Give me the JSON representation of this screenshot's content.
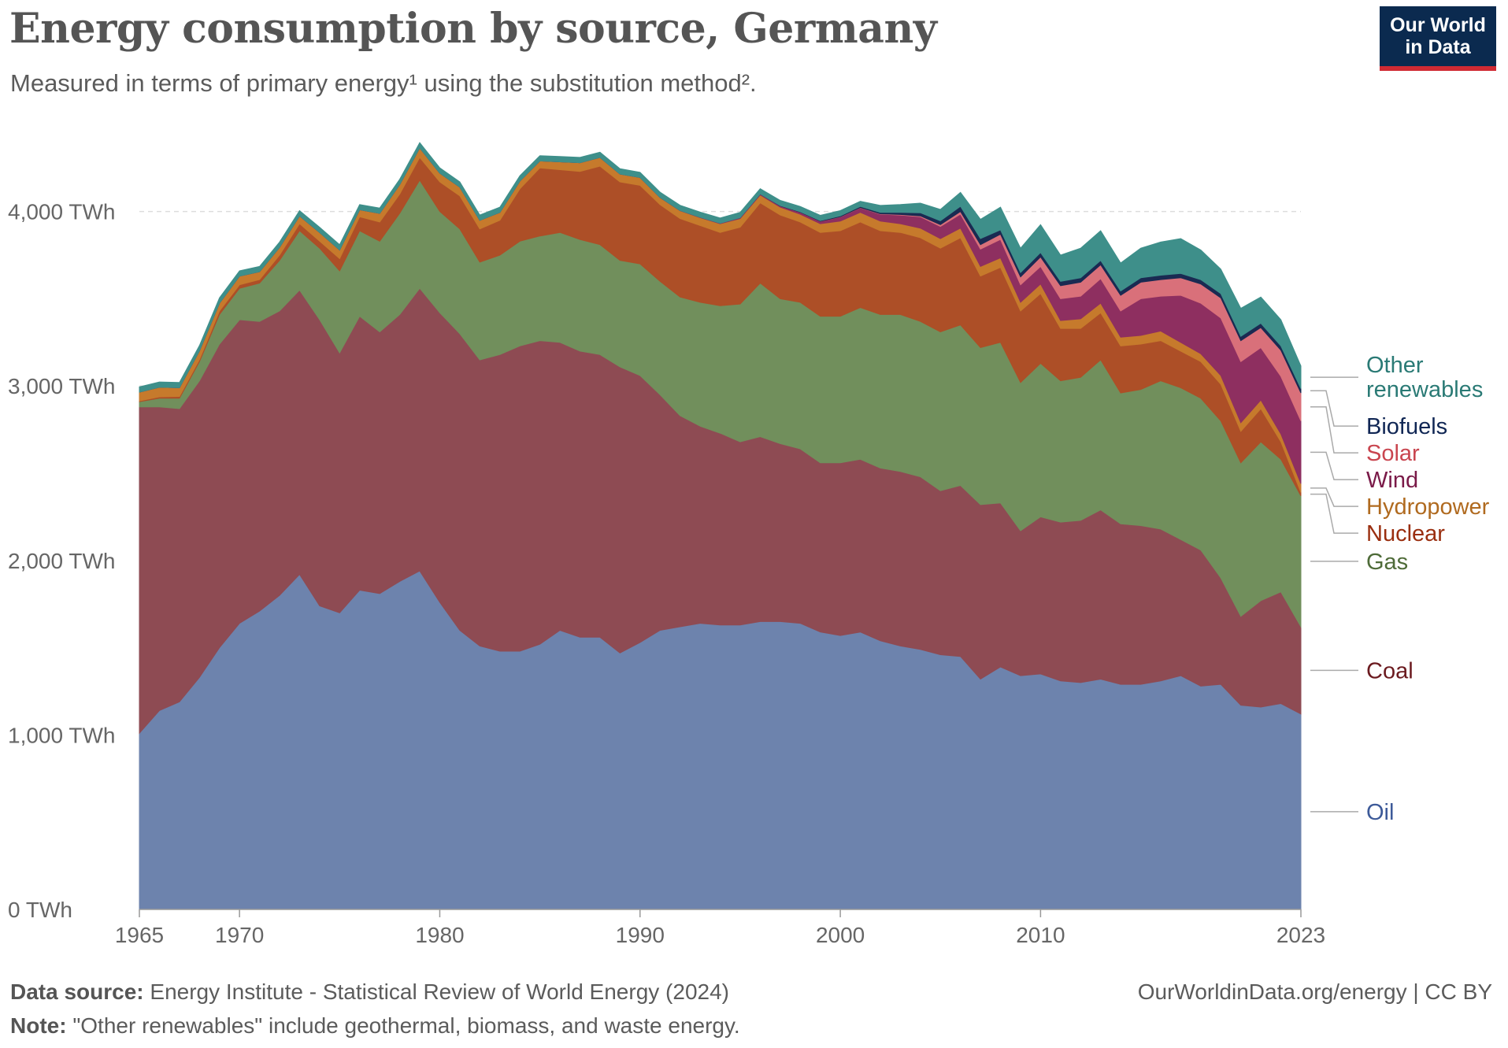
{
  "header": {
    "title": "Energy consumption by source, Germany",
    "subtitle": "Measured in terms of primary energy¹ using the substitution method²."
  },
  "logo": {
    "line1": "Our World",
    "line2": "in Data"
  },
  "footer": {
    "source_label": "Data source:",
    "source_text": "Energy Institute - Statistical Review of World Energy (2024)",
    "note_label": "Note:",
    "note_text": "\"Other renewables\" include geothermal, biomass, and waste energy.",
    "credit": "OurWorldinData.org/energy | CC BY"
  },
  "chart_data": {
    "type": "area",
    "stacked": true,
    "unit": "TWh",
    "x_ticks": [
      "1965",
      "1970",
      "1980",
      "1990",
      "2000",
      "2010",
      "2023"
    ],
    "y_ticks": [
      "0 TWh",
      "1,000 TWh",
      "2,000 TWh",
      "3,000 TWh",
      "4,000 TWh"
    ],
    "ylim": [
      0,
      4400
    ],
    "xlim": [
      1965,
      2023
    ],
    "gridlines": "horizontal dashed",
    "legend_placement": "right, inline labels",
    "x": [
      1965,
      1966,
      1967,
      1968,
      1969,
      1970,
      1971,
      1972,
      1973,
      1974,
      1975,
      1976,
      1977,
      1978,
      1979,
      1980,
      1981,
      1982,
      1983,
      1984,
      1985,
      1986,
      1987,
      1988,
      1989,
      1990,
      1991,
      1992,
      1993,
      1994,
      1995,
      1996,
      1997,
      1998,
      1999,
      2000,
      2001,
      2002,
      2003,
      2004,
      2005,
      2006,
      2007,
      2008,
      2009,
      2010,
      2011,
      2012,
      2013,
      2014,
      2015,
      2016,
      2017,
      2018,
      2019,
      2020,
      2021,
      2022,
      2023
    ],
    "series": [
      {
        "name": "Oil",
        "color": "#6d83ad",
        "label_color": "#3d5a99",
        "values": [
          1010,
          1140,
          1190,
          1330,
          1500,
          1640,
          1710,
          1800,
          1920,
          1740,
          1700,
          1830,
          1810,
          1880,
          1940,
          1760,
          1600,
          1510,
          1480,
          1480,
          1520,
          1600,
          1560,
          1560,
          1470,
          1530,
          1600,
          1620,
          1640,
          1630,
          1630,
          1650,
          1650,
          1640,
          1590,
          1570,
          1590,
          1540,
          1510,
          1490,
          1460,
          1450,
          1320,
          1390,
          1340,
          1350,
          1310,
          1300,
          1320,
          1290,
          1290,
          1310,
          1340,
          1280,
          1290,
          1170,
          1160,
          1180,
          1120
        ]
      },
      {
        "name": "Coal",
        "color": "#8e4b53",
        "label_color": "#6b1a1f",
        "values": [
          1870,
          1740,
          1680,
          1700,
          1740,
          1740,
          1660,
          1630,
          1630,
          1640,
          1490,
          1570,
          1500,
          1530,
          1620,
          1660,
          1700,
          1640,
          1700,
          1750,
          1740,
          1650,
          1640,
          1620,
          1640,
          1530,
          1350,
          1210,
          1130,
          1100,
          1050,
          1060,
          1020,
          1000,
          970,
          990,
          990,
          990,
          1000,
          990,
          940,
          980,
          1000,
          940,
          830,
          900,
          910,
          930,
          970,
          920,
          910,
          870,
          780,
          780,
          610,
          510,
          610,
          640,
          500
        ]
      },
      {
        "name": "Gas",
        "color": "#718f5c",
        "label_color": "#4e6b38",
        "values": [
          30,
          50,
          60,
          110,
          170,
          180,
          220,
          290,
          340,
          410,
          470,
          490,
          520,
          580,
          620,
          580,
          600,
          560,
          570,
          600,
          600,
          630,
          640,
          630,
          610,
          640,
          650,
          680,
          710,
          730,
          790,
          880,
          830,
          840,
          840,
          840,
          870,
          880,
          900,
          890,
          910,
          920,
          900,
          920,
          850,
          880,
          810,
          820,
          860,
          750,
          780,
          850,
          870,
          870,
          900,
          880,
          910,
          760,
          750
        ]
      },
      {
        "name": "Nuclear",
        "color": "#ad4f27",
        "label_color": "#9a2e0f",
        "values": [
          5,
          8,
          10,
          12,
          20,
          20,
          20,
          30,
          40,
          40,
          70,
          80,
          110,
          110,
          130,
          170,
          190,
          190,
          200,
          300,
          390,
          360,
          390,
          450,
          450,
          450,
          440,
          450,
          440,
          420,
          440,
          460,
          480,
          460,
          480,
          490,
          490,
          480,
          470,
          480,
          480,
          500,
          410,
          430,
          410,
          400,
          300,
          280,
          270,
          270,
          260,
          230,
          210,
          210,
          210,
          180,
          190,
          100,
          20
        ]
      },
      {
        "name": "Hydropower",
        "color": "#c67a2c",
        "label_color": "#b06a1f",
        "values": [
          50,
          55,
          50,
          50,
          45,
          50,
          45,
          45,
          45,
          50,
          50,
          40,
          50,
          55,
          55,
          50,
          50,
          50,
          45,
          45,
          40,
          45,
          50,
          50,
          45,
          45,
          40,
          45,
          45,
          50,
          50,
          45,
          45,
          45,
          50,
          55,
          55,
          55,
          50,
          55,
          55,
          55,
          55,
          55,
          50,
          55,
          45,
          55,
          55,
          50,
          50,
          55,
          50,
          45,
          50,
          50,
          50,
          45,
          50
        ]
      },
      {
        "name": "Wind",
        "color": "#8e2f60",
        "label_color": "#7a1a48",
        "values": [
          0,
          0,
          0,
          0,
          0,
          0,
          0,
          0,
          0,
          0,
          0,
          0,
          0,
          0,
          0,
          0,
          0,
          0,
          0,
          0,
          0,
          0,
          0,
          0,
          0,
          0,
          1,
          1,
          2,
          3,
          4,
          5,
          7,
          11,
          14,
          24,
          27,
          40,
          50,
          65,
          70,
          80,
          100,
          105,
          100,
          100,
          125,
          130,
          140,
          150,
          210,
          200,
          270,
          290,
          330,
          350,
          300,
          330,
          360
        ]
      },
      {
        "name": "Solar",
        "color": "#d9707a",
        "label_color": "#c9454f",
        "values": [
          0,
          0,
          0,
          0,
          0,
          0,
          0,
          0,
          0,
          0,
          0,
          0,
          0,
          0,
          0,
          0,
          0,
          0,
          0,
          0,
          0,
          0,
          0,
          0,
          0,
          0,
          0,
          0,
          0,
          0,
          0,
          0,
          0,
          0,
          0,
          1,
          1,
          2,
          3,
          5,
          10,
          15,
          25,
          30,
          45,
          55,
          75,
          80,
          80,
          90,
          95,
          95,
          100,
          110,
          115,
          120,
          115,
          150,
          160
        ]
      },
      {
        "name": "Biofuels",
        "color": "#1a2a52",
        "label_color": "#102654",
        "values": [
          0,
          0,
          0,
          0,
          0,
          0,
          0,
          0,
          0,
          0,
          0,
          0,
          0,
          0,
          0,
          0,
          0,
          0,
          0,
          0,
          0,
          0,
          0,
          0,
          0,
          0,
          0,
          0,
          0,
          0,
          1,
          1,
          2,
          3,
          4,
          5,
          6,
          8,
          12,
          18,
          22,
          30,
          35,
          25,
          25,
          25,
          25,
          25,
          25,
          25,
          25,
          25,
          25,
          25,
          25,
          25,
          25,
          25,
          25
        ]
      },
      {
        "name": "Other renewables",
        "color": "#3e8f8a",
        "label_color": "#2a7a75",
        "values": [
          30,
          30,
          30,
          30,
          30,
          30,
          30,
          30,
          30,
          30,
          30,
          30,
          30,
          30,
          30,
          30,
          30,
          30,
          30,
          30,
          30,
          30,
          30,
          30,
          30,
          30,
          30,
          30,
          30,
          30,
          30,
          30,
          30,
          30,
          30,
          30,
          30,
          40,
          45,
          55,
          65,
          80,
          110,
          130,
          140,
          160,
          150,
          170,
          170,
          160,
          170,
          190,
          200,
          170,
          140,
          160,
          150,
          150,
          130
        ]
      }
    ]
  }
}
